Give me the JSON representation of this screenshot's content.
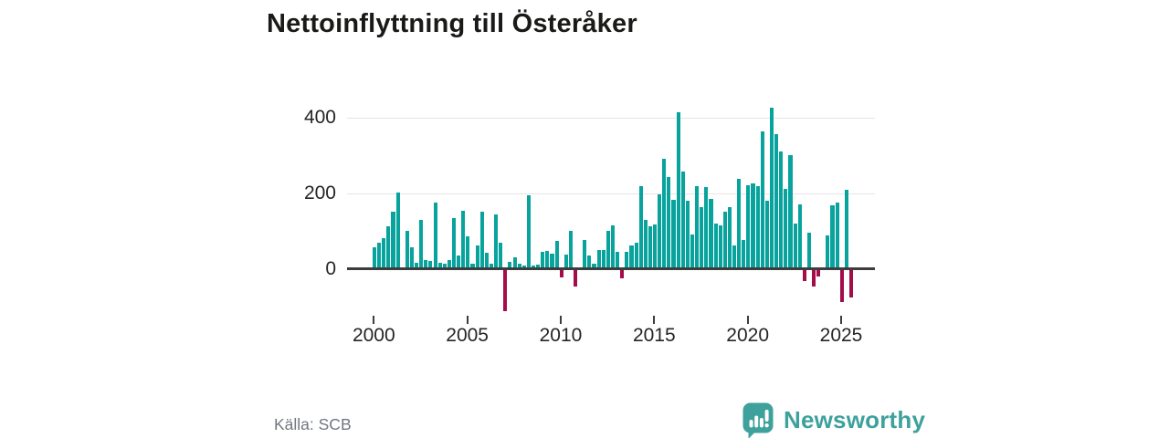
{
  "title": "Nettoinflyttning till Österåker",
  "source_note": "Källa: SCB",
  "branding": {
    "name": "Newsworthy",
    "icon": "newsworthy-speech-bubble-bar-chart-icon",
    "color": "#3ea19b"
  },
  "colors": {
    "positive_bar": "#09a39e",
    "negative_bar": "#a30d49",
    "axis": "#3d3d3d",
    "grid": "#e4e4e4",
    "text": "#252525",
    "source_text": "#70767f",
    "background": "#ffffff"
  },
  "chart_data": {
    "type": "bar",
    "title": "Nettoinflyttning till Österåker",
    "frequency": "quarterly",
    "x_start": "2000Q1",
    "x_end": "2025Q3",
    "xlabel": "",
    "ylabel": "",
    "ylim": [
      -130,
      445
    ],
    "y_ticks": [
      0,
      200,
      400
    ],
    "y_gridlines": [
      200,
      400
    ],
    "x_ticks": [
      2000,
      2005,
      2010,
      2015,
      2020,
      2025
    ],
    "legend": "none",
    "values": [
      57,
      69,
      81,
      113,
      150,
      202,
      0,
      100,
      57,
      15,
      130,
      23,
      20,
      175,
      16,
      14,
      22,
      134,
      36,
      152,
      85,
      14,
      62,
      150,
      41,
      14,
      144,
      68,
      -111,
      19,
      31,
      13,
      8,
      193,
      8,
      11,
      45,
      48,
      40,
      74,
      -22,
      37,
      100,
      -48,
      0,
      77,
      36,
      13,
      49,
      49,
      101,
      114,
      45,
      -26,
      45,
      61,
      69,
      219,
      128,
      111,
      116,
      197,
      290,
      243,
      182,
      413,
      256,
      180,
      90,
      218,
      162,
      216,
      185,
      120,
      115,
      150,
      162,
      61,
      238,
      75,
      220,
      225,
      217,
      362,
      180,
      425,
      355,
      310,
      210,
      300,
      120,
      170,
      -33,
      96,
      -47,
      -20,
      0,
      89,
      168,
      174,
      -88,
      208,
      -77
    ]
  }
}
